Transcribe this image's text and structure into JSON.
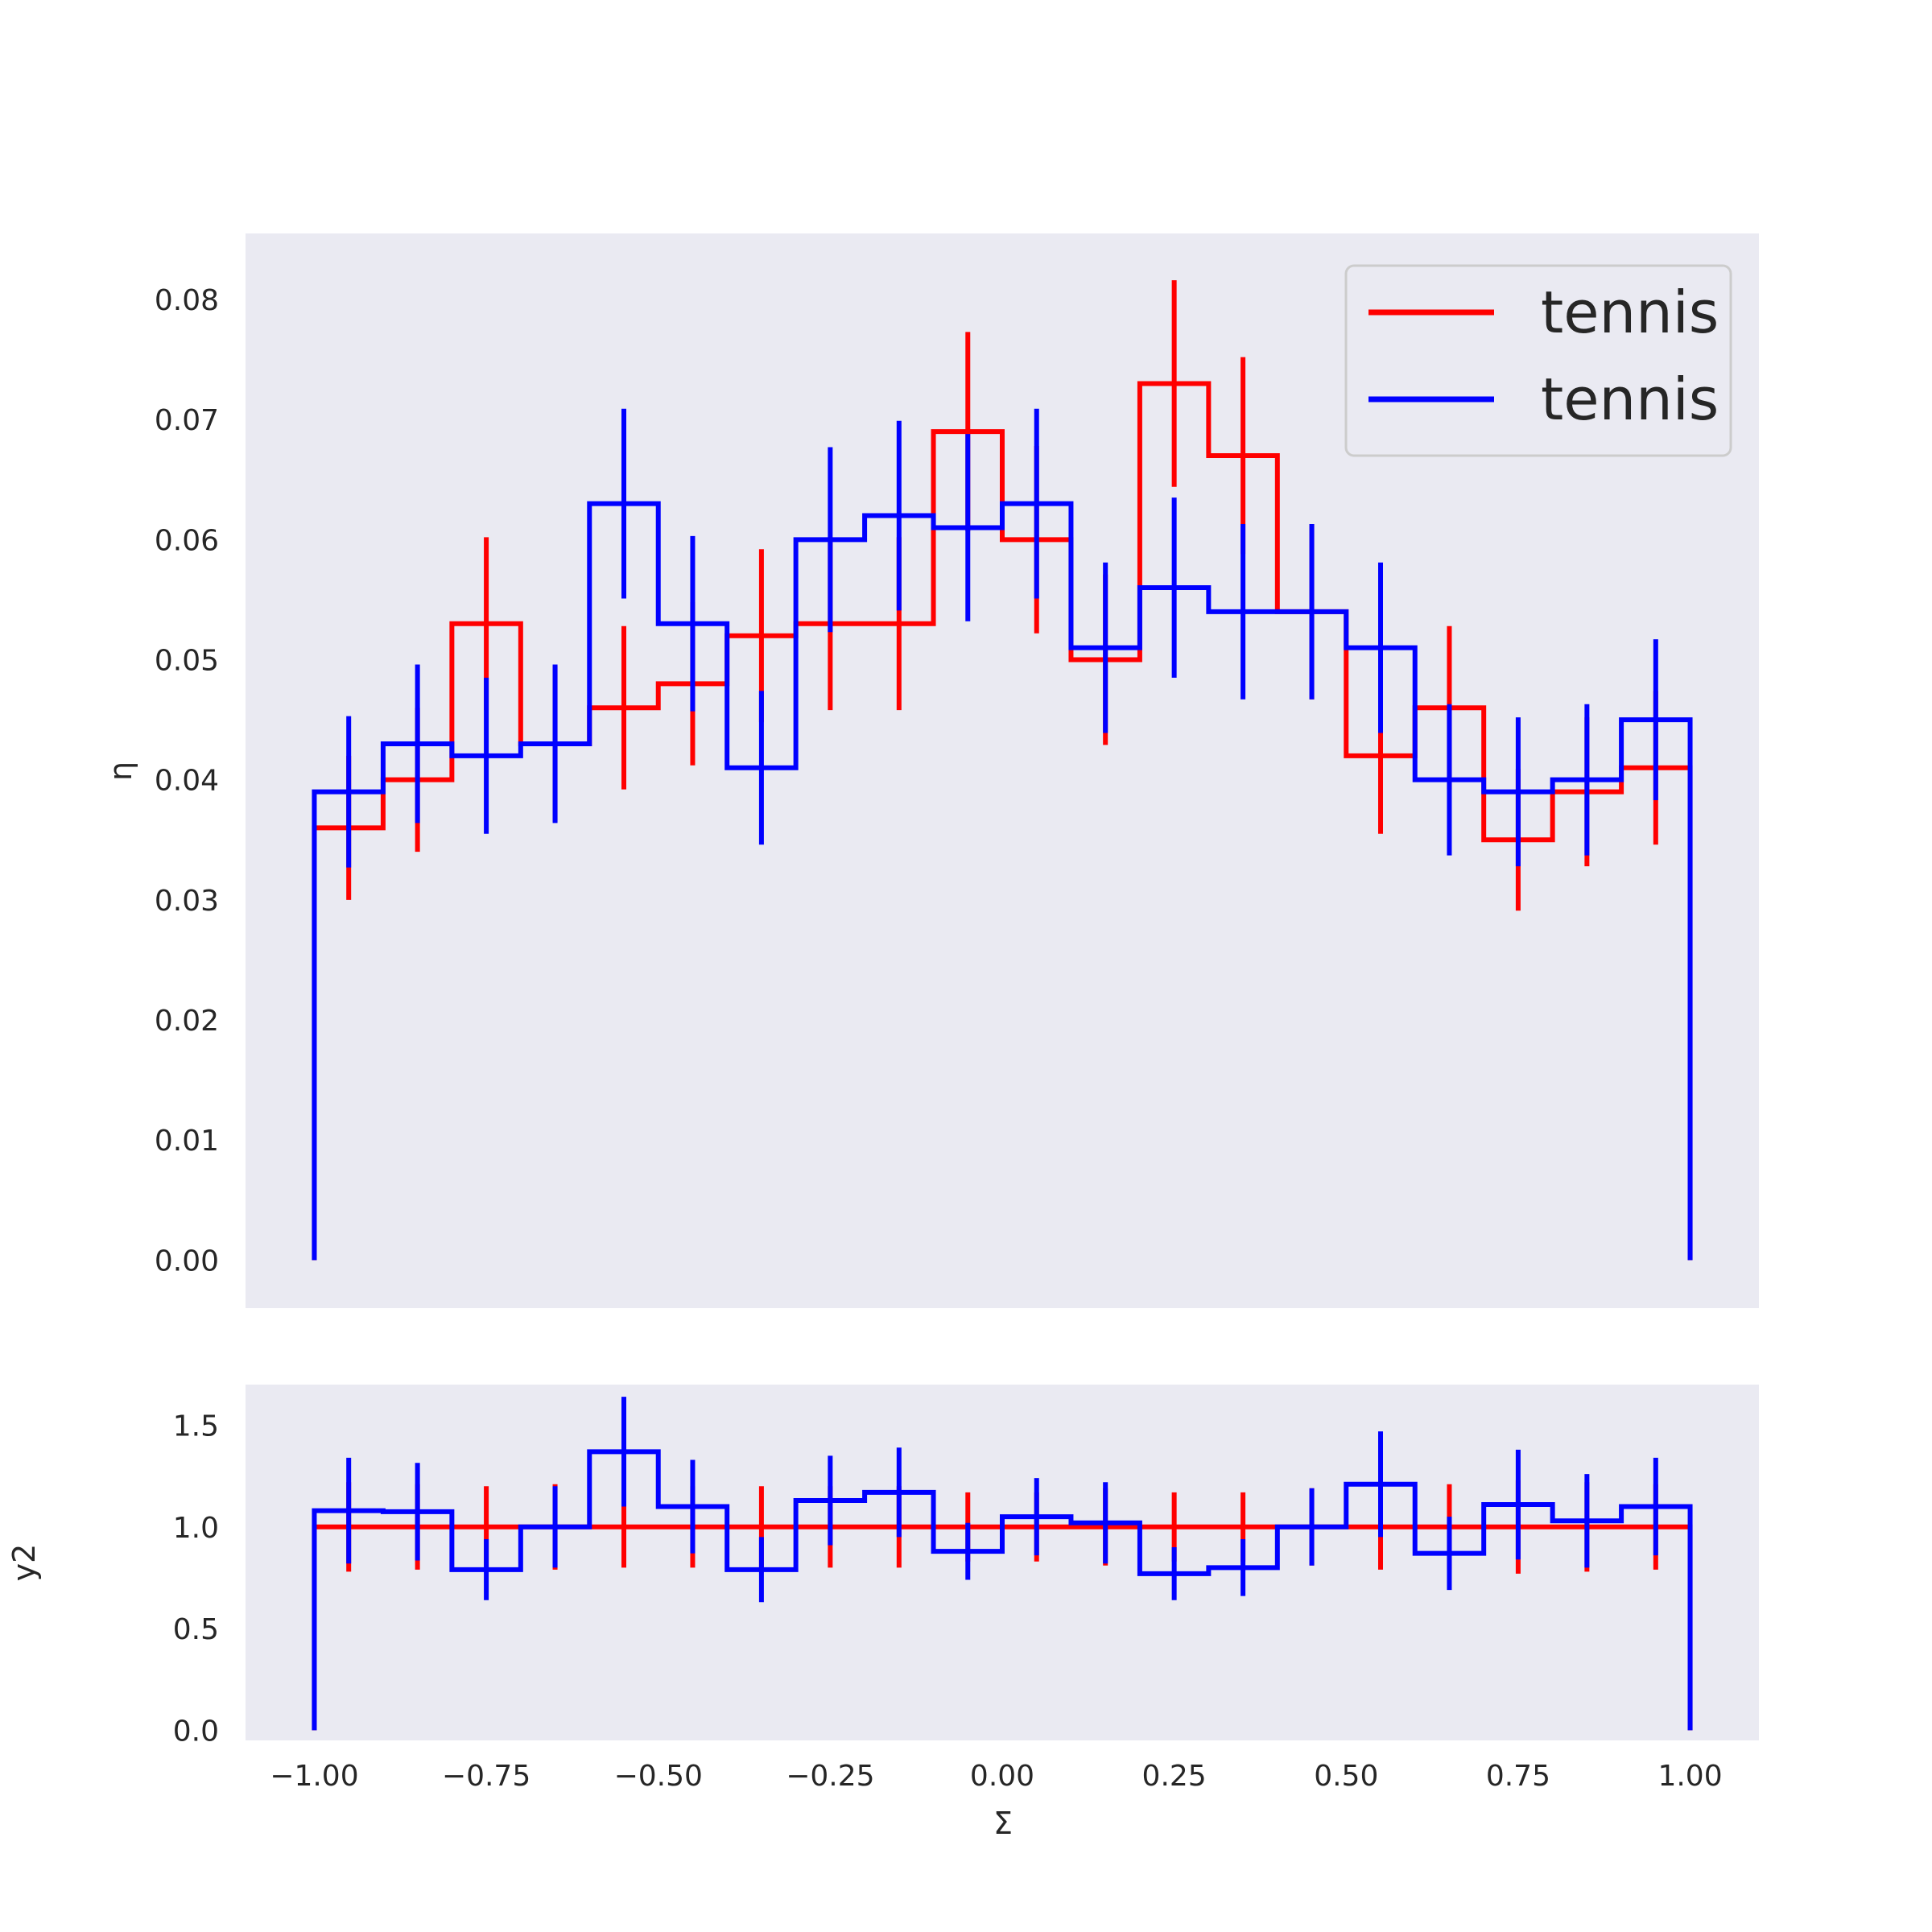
{
  "chart_data": [
    {
      "type": "histogram-step",
      "panel": "main",
      "xlim": [
        -1.1,
        1.1
      ],
      "ylim": [
        -0.004,
        0.0855
      ],
      "ylabel": "η",
      "xlabel": "",
      "yticks": [
        0.0,
        0.01,
        0.02,
        0.03,
        0.04,
        0.05,
        0.06,
        0.07,
        0.08
      ],
      "ytick_labels": [
        "0.00",
        "0.01",
        "0.02",
        "0.03",
        "0.04",
        "0.05",
        "0.06",
        "0.07",
        "0.08"
      ],
      "grid": false,
      "legend": "top-right",
      "bin_edges": [
        -1.0,
        -0.9,
        -0.8,
        -0.7,
        -0.6,
        -0.5,
        -0.4,
        -0.3,
        -0.2,
        -0.1,
        0.0,
        0.1,
        0.2,
        0.3,
        0.4,
        0.5,
        0.6,
        0.7,
        0.8,
        0.9,
        1.0
      ],
      "series": [
        {
          "name": "tennis",
          "color": "#ff0000",
          "values": [
            0.036,
            0.04,
            0.053,
            0.043,
            0.046,
            0.048,
            0.052,
            0.053,
            0.053,
            0.069,
            0.06,
            0.05,
            0.073,
            0.067,
            0.054,
            0.042,
            0.046,
            0.035,
            0.039,
            0.041
          ],
          "errors": [
            0.006,
            0.006,
            0.0072,
            0.0065,
            0.0068,
            0.0068,
            0.0072,
            0.0072,
            0.0072,
            0.0083,
            0.0078,
            0.0071,
            0.0086,
            0.0082,
            0.0073,
            0.0065,
            0.0068,
            0.0059,
            0.0062,
            0.0064
          ]
        },
        {
          "name": "tennis",
          "color": "#0000ff",
          "values": [
            0.039,
            0.043,
            0.042,
            0.043,
            0.063,
            0.053,
            0.041,
            0.06,
            0.062,
            0.061,
            0.063,
            0.051,
            0.056,
            0.054,
            0.054,
            0.051,
            0.04,
            0.039,
            0.04,
            0.045
          ],
          "errors": [
            0.0063,
            0.0066,
            0.0065,
            0.0066,
            0.0079,
            0.0073,
            0.0064,
            0.0077,
            0.0079,
            0.0078,
            0.0079,
            0.0071,
            0.0075,
            0.0073,
            0.0073,
            0.0071,
            0.0063,
            0.0062,
            0.0063,
            0.0067
          ]
        }
      ]
    },
    {
      "type": "histogram-step",
      "panel": "ratio",
      "xlim": [
        -1.1,
        1.1
      ],
      "ylim": [
        -0.05,
        1.7
      ],
      "ylabel": "y2",
      "xlabel": "Σ",
      "yticks": [
        0.0,
        0.5,
        1.0,
        1.5
      ],
      "ytick_labels": [
        "0.0",
        "0.5",
        "1.0",
        "1.5"
      ],
      "xticks": [
        -1.0,
        -0.75,
        -0.5,
        -0.25,
        0.0,
        0.25,
        0.5,
        0.75,
        1.0
      ],
      "xtick_labels": [
        "−1.00",
        "−0.75",
        "−0.50",
        "−0.25",
        "0.00",
        "0.25",
        "0.50",
        "0.75",
        "1.00"
      ],
      "grid": false,
      "bin_edges": [
        -1.0,
        -0.9,
        -0.8,
        -0.7,
        -0.6,
        -0.5,
        -0.4,
        -0.3,
        -0.2,
        -0.1,
        0.0,
        0.1,
        0.2,
        0.3,
        0.4,
        0.5,
        0.6,
        0.7,
        0.8,
        0.9,
        1.0
      ],
      "series": [
        {
          "name": "tennis",
          "color": "#ff0000",
          "values": [
            1.0,
            1.0,
            1.0,
            1.0,
            1.0,
            1.0,
            1.0,
            1.0,
            1.0,
            1.0,
            1.0,
            1.0,
            1.0,
            1.0,
            1.0,
            1.0,
            1.0,
            1.0,
            1.0,
            1.0
          ],
          "errors": [
            0.22,
            0.21,
            0.2,
            0.21,
            0.2,
            0.2,
            0.2,
            0.2,
            0.2,
            0.17,
            0.17,
            0.19,
            0.17,
            0.17,
            0.19,
            0.21,
            0.21,
            0.23,
            0.22,
            0.21
          ]
        },
        {
          "name": "tennis",
          "color": "#0000ff",
          "values": [
            1.08,
            1.075,
            0.79,
            1.0,
            1.37,
            1.1,
            0.79,
            1.13,
            1.17,
            0.88,
            1.05,
            1.02,
            0.77,
            0.8,
            1.0,
            1.21,
            0.87,
            1.11,
            1.03,
            1.1
          ],
          "errors": [
            0.26,
            0.24,
            0.15,
            0.2,
            0.27,
            0.23,
            0.16,
            0.22,
            0.22,
            0.14,
            0.19,
            0.2,
            0.13,
            0.14,
            0.19,
            0.26,
            0.18,
            0.27,
            0.23,
            0.24
          ]
        }
      ]
    }
  ]
}
